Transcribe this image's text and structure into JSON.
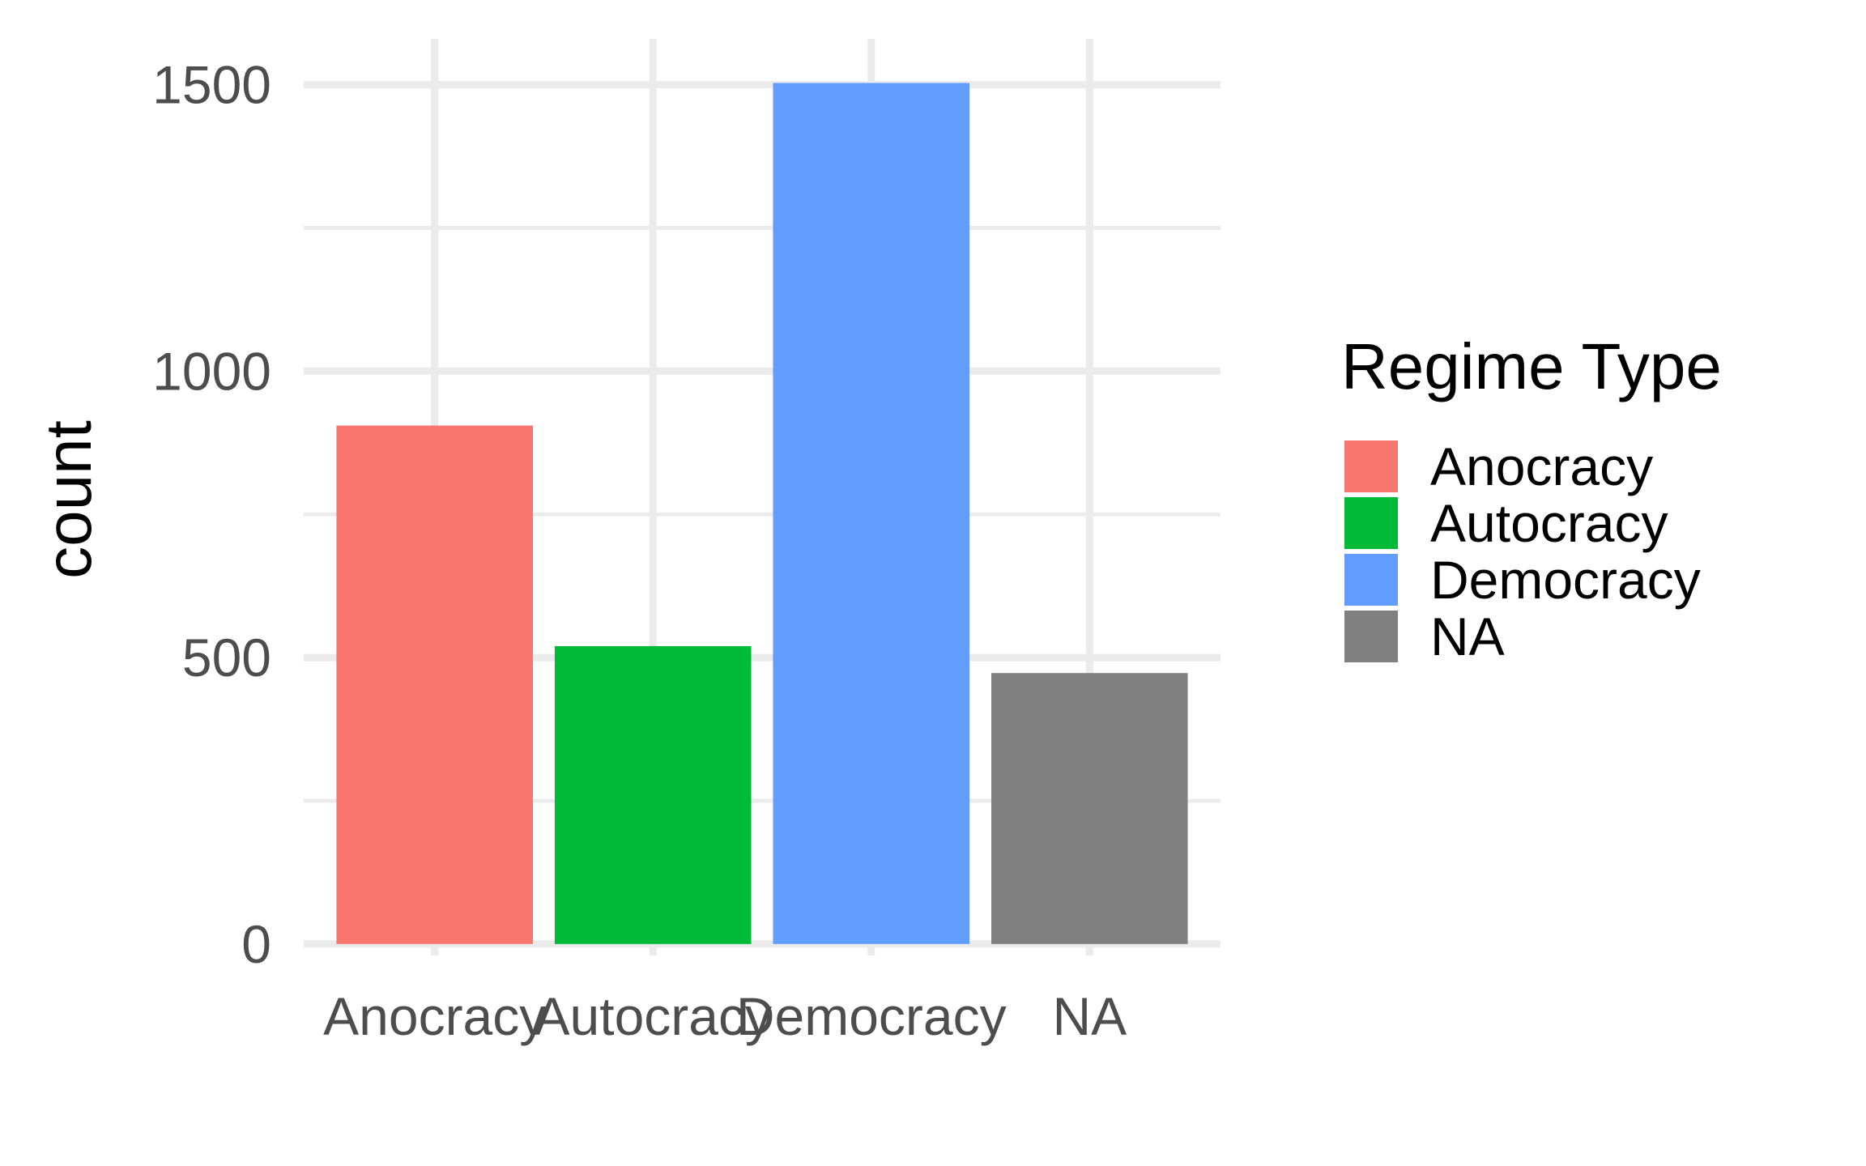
{
  "chart_data": {
    "type": "bar",
    "categories": [
      "Anocracy",
      "Autocracy",
      "Democracy",
      "NA"
    ],
    "values": [
      905,
      520,
      1503,
      473
    ],
    "colors": [
      "#F8766D",
      "#00BA38",
      "#619CFF",
      "#808080"
    ],
    "xlabel": "",
    "ylabel": "count",
    "ylim": [
      -20,
      1580
    ],
    "yticks": [
      0,
      500,
      1000,
      1500
    ],
    "yticks_minor": [
      250,
      750,
      1250
    ],
    "grid": true,
    "legend": {
      "title": "Regime Type",
      "position": "right",
      "entries": [
        "Anocracy",
        "Autocracy",
        "Democracy",
        "NA"
      ]
    }
  }
}
